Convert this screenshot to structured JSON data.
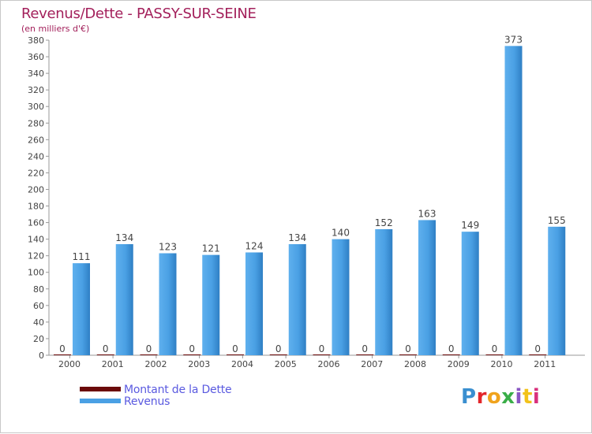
{
  "chart_data": {
    "type": "bar",
    "title": "Revenus/Dette - PASSY-SUR-SEINE",
    "subtitle": "(en milliers d'€)",
    "categories": [
      "2000",
      "2001",
      "2002",
      "2003",
      "2004",
      "2005",
      "2006",
      "2007",
      "2008",
      "2009",
      "2010",
      "2011"
    ],
    "series": [
      {
        "name": "Montant de la Dette",
        "color": "#6b0a0a",
        "values": [
          0,
          0,
          0,
          0,
          0,
          0,
          0,
          0,
          0,
          0,
          0,
          0
        ]
      },
      {
        "name": "Revenus",
        "color": "#4aa0e4",
        "values": [
          111,
          134,
          123,
          121,
          124,
          134,
          140,
          152,
          163,
          149,
          373,
          155
        ]
      }
    ],
    "ylim": [
      0,
      380
    ],
    "yticks": [
      0,
      20,
      40,
      60,
      80,
      100,
      120,
      140,
      160,
      180,
      200,
      220,
      240,
      260,
      280,
      300,
      320,
      340,
      360,
      380
    ],
    "grid": false,
    "legend": "bottom-left"
  },
  "logo": {
    "text": "Proxiti",
    "colors": [
      "#3a8fd0",
      "#e3262b",
      "#f0a31d",
      "#3aae48",
      "#8a57c3",
      "#f2c21a",
      "#d9307c"
    ]
  }
}
